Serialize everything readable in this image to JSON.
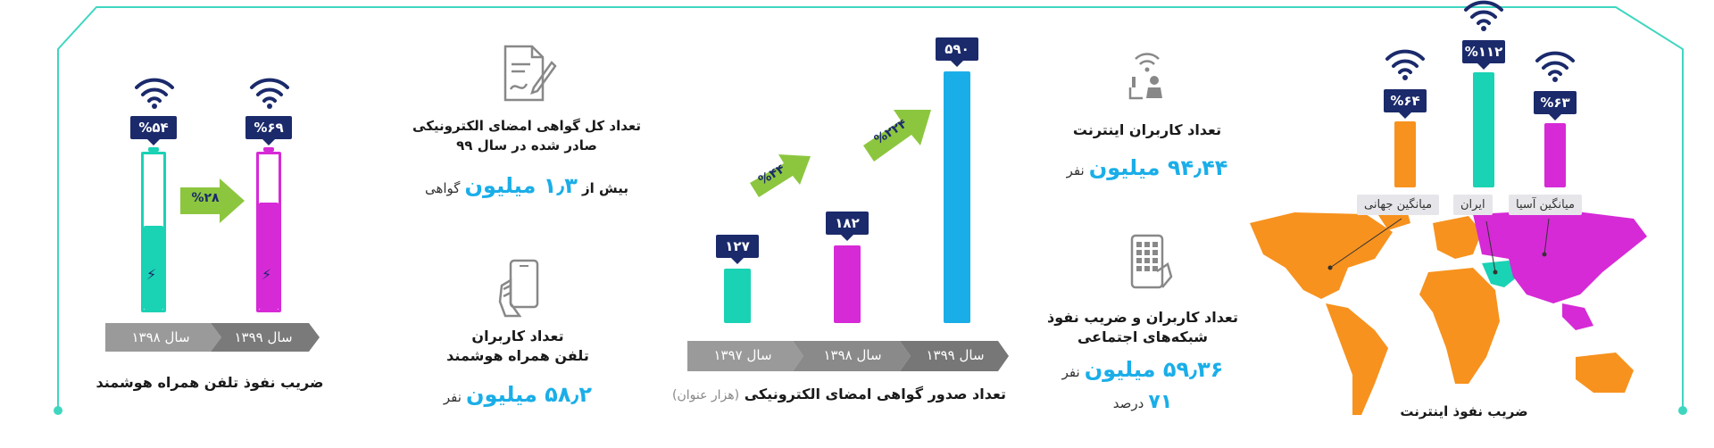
{
  "colors": {
    "cyan": "#1ad2b4",
    "magenta": "#d62ad6",
    "orange": "#f7921e",
    "navy": "#1b2a6b",
    "blue": "#1aaee8",
    "green": "#8cc63f",
    "gray": "#8d8d8d"
  },
  "internet_penetration": {
    "title": "ضریب نفوذ اینترنت",
    "bars": [
      {
        "label": "میانگین آسیا",
        "value_label": "%۶۳",
        "value": 63,
        "color": "#d62ad6"
      },
      {
        "label": "ایران",
        "value_label": "%۱۱۲",
        "value": 112,
        "color": "#1ad2b4"
      },
      {
        "label": "میانگین جهانی",
        "value_label": "%۶۴",
        "value": 64,
        "color": "#f7921e"
      }
    ]
  },
  "internet_users": {
    "title": "تعداد کاربران اینترنت",
    "value": "۹۴٫۴۴ میلیون",
    "unit": "نفر",
    "icon": "internet-user-icon"
  },
  "social_users": {
    "title_line1": "تعداد کاربران و ضریب نفوذ",
    "title_line2": "شبکه‌های اجتماعی",
    "value": "۵۹٫۳۶ میلیون",
    "unit": "نفر",
    "percent": "۷۱",
    "percent_unit": "درصد",
    "icon": "smartphone-grid-icon"
  },
  "esign_chart": {
    "title": "تعداد صدور گواهی امضای الکترونیکی",
    "subtitle": "(هزار عنوان)",
    "bars": [
      {
        "year": "سال ۱۳۹۷",
        "value": 127,
        "value_label": "۱۲۷",
        "color": "#1ad2b4"
      },
      {
        "year": "سال ۱۳۹۸",
        "value": 182,
        "value_label": "۱۸۲",
        "color": "#d62ad6"
      },
      {
        "year": "سال ۱۳۹۹",
        "value": 590,
        "value_label": "۵۹۰",
        "color": "#1aaee8"
      }
    ],
    "growth": [
      {
        "label": "%۴۴"
      },
      {
        "label": "%۲۲۴"
      }
    ]
  },
  "esign_total": {
    "title_line1": "تعداد کل گواهی امضای الکترونیکی",
    "title_line2": "صادر شده در سال ۹۹",
    "prefix": "بیش از",
    "value": "۱٫۳ میلیون",
    "unit": "گواهی",
    "icon": "signed-document-icon"
  },
  "smartphone_users": {
    "title_line1": "تعداد کاربران",
    "title_line2": "تلفن همراه هوشمند",
    "value": "۵۸٫۲ میلیون",
    "unit": "نفر",
    "icon": "hand-phone-icon"
  },
  "smartphone_penetration": {
    "title": "ضریب نفوذ تلفن همراه هوشمند",
    "bars": [
      {
        "year": "سال ۱۳۹۸",
        "value": 54,
        "value_label": "%۵۴",
        "color": "#1ad2b4"
      },
      {
        "year": "سال ۱۳۹۹",
        "value": 69,
        "value_label": "%۶۹",
        "color": "#d62ad6"
      }
    ],
    "growth": "%۲۸"
  }
}
